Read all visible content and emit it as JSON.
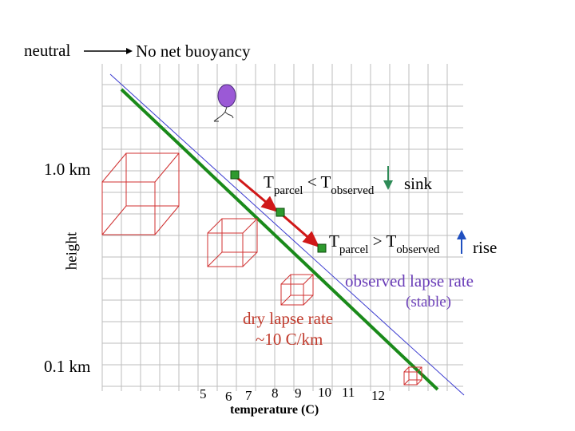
{
  "header": {
    "neutral_label": "neutral",
    "no_buoyancy_label": "No net buoyancy"
  },
  "axes": {
    "y_title": "height",
    "y_top_label": "1.0 km",
    "y_bottom_label": "0.1 km",
    "x_title": "temperature (C)",
    "x_ticks": [
      "5",
      "6",
      "7",
      "8",
      "9",
      "10",
      "11",
      "12"
    ]
  },
  "annotations": {
    "sink": {
      "t": "T",
      "parcel": "parcel",
      "op": " < ",
      "observed": "observed",
      "word": "sink"
    },
    "rise": {
      "t": "T",
      "parcel": "parcel",
      "op": " > ",
      "observed": "observed",
      "word": "rise"
    },
    "observed_lapse_rate": "observed lapse rate",
    "stable": "(stable)",
    "dry_lapse_rate": "dry lapse rate",
    "dry_lapse_value": "~10 C/km"
  },
  "colors": {
    "dry_adiabat": "#1a8a1a",
    "observed_line": "#3a3ad0",
    "parcel_path": "#d01818",
    "parcel_marker": "#2e9a2e",
    "balloon": "#9b59d6",
    "cube": "#d03030",
    "arrow_down": "#2e8b57",
    "arrow_up": "#2050c0"
  }
}
